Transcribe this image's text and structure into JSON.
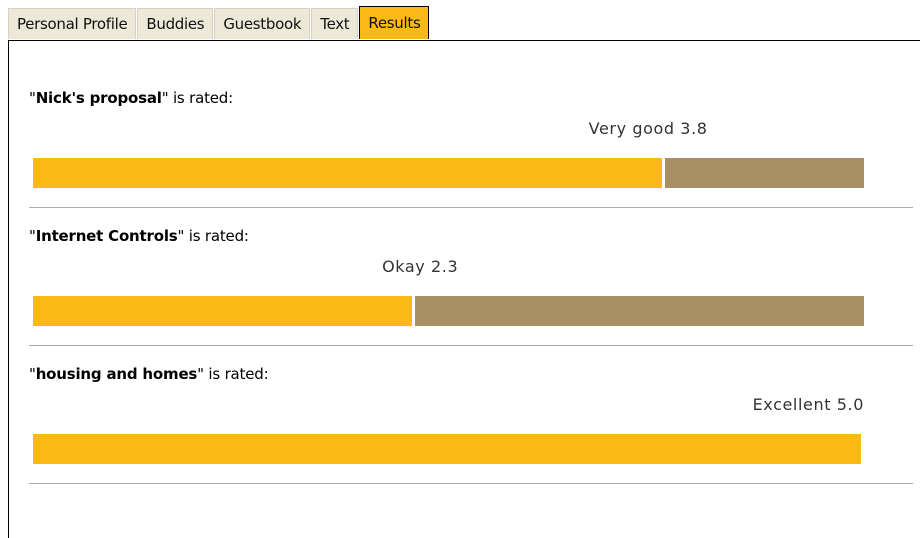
{
  "tabs": [
    "Personal Profile",
    "Buddies",
    "Guestbook",
    "Text",
    "Results"
  ],
  "active_tab": 4,
  "title_open": "\"",
  "title_close": "\" is rated:",
  "xlim": [
    0,
    5
  ],
  "items": [
    {
      "name": "Nick's proposal",
      "rating_label": "Very good 3.8",
      "value": 3.8
    },
    {
      "name": "Internet Controls",
      "rating_label": "Okay 2.3",
      "value": 2.3
    },
    {
      "name": "housing and homes",
      "rating_label": "Excellent 5.0",
      "value": 5.0
    }
  ]
}
